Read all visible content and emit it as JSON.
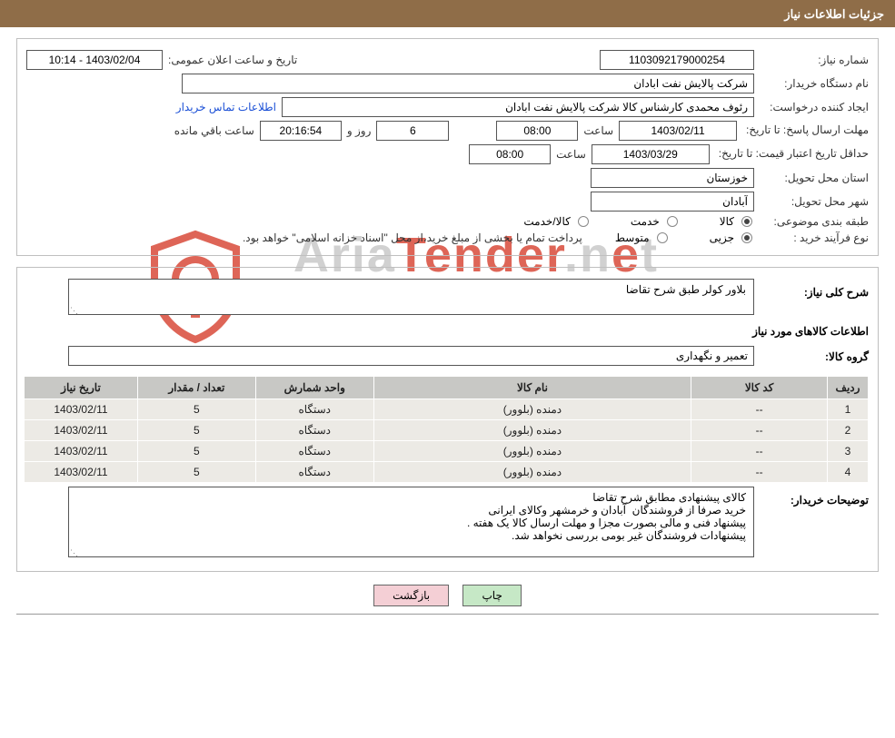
{
  "header": {
    "title": "جزئیات اطلاعات نیاز"
  },
  "panel1": {
    "need_number_label": "شماره نیاز:",
    "need_number": "1103092179000254",
    "announce_label": "تاریخ و ساعت اعلان عمومی:",
    "announce_value": "1403/02/04 - 10:14",
    "buyer_org_label": "نام دستگاه خریدار:",
    "buyer_org": "شرکت پالایش نفت ابادان",
    "requester_label": "ایجاد کننده درخواست:",
    "requester": "رئوف محمدی کارشناس کالا شرکت پالایش نفت ابادان",
    "buyer_contact_link": "اطلاعات تماس خریدار",
    "reply_deadline_label": "مهلت ارسال پاسخ: تا تاریخ:",
    "reply_deadline_date": "1403/02/11",
    "time_word": "ساعت",
    "reply_deadline_time": "08:00",
    "days_value": "6",
    "days_word": "روز و",
    "countdown": "20:16:54",
    "remaining_text": "ساعت باقي مانده",
    "price_validity_label": "حداقل تاریخ اعتبار قیمت: تا تاریخ:",
    "price_validity_date": "1403/03/29",
    "price_validity_time": "08:00",
    "province_label": "استان محل تحویل:",
    "province": "خوزستان",
    "city_label": "شهر محل تحویل:",
    "city": "آبادان",
    "category_label": "طبقه بندی موضوعی:",
    "cat_goods": "کالا",
    "cat_service": "خدمت",
    "cat_goods_service": "کالا/خدمت",
    "purchase_type_label": "نوع فرآیند خرید :",
    "pt_small": "جزیی",
    "pt_medium": "متوسط",
    "purchase_note": "پرداخت تمام یا بخشی از مبلغ خرید،از محل \"اسناد خزانه اسلامی\" خواهد بود."
  },
  "panel2": {
    "need_desc_label": "شرح کلی نیاز:",
    "need_desc": "بلاور کولر طبق شرح تقاضا",
    "goods_title": "اطلاعات کالاهای مورد نیاز",
    "goods_group_label": "گروه کالا:",
    "goods_group": "تعمیر و نگهداری",
    "table": {
      "columns": [
        "ردیف",
        "کد کالا",
        "نام کالا",
        "واحد شمارش",
        "تعداد / مقدار",
        "تاریخ نیاز"
      ],
      "col_widths": [
        "45px",
        "150px",
        "350px",
        "130px",
        "130px",
        "125px"
      ],
      "rows": [
        [
          "1",
          "--",
          "دمنده (بلوور)",
          "دستگاه",
          "5",
          "1403/02/11"
        ],
        [
          "2",
          "--",
          "دمنده (بلوور)",
          "دستگاه",
          "5",
          "1403/02/11"
        ],
        [
          "3",
          "--",
          "دمنده (بلوور)",
          "دستگاه",
          "5",
          "1403/02/11"
        ],
        [
          "4",
          "--",
          "دمنده (بلوور)",
          "دستگاه",
          "5",
          "1403/02/11"
        ]
      ]
    },
    "buyer_notes_label": "توضیحات خریدار:",
    "buyer_notes": "کالای پیشنهادی مطابق شرح تقاضا\nخرید صرفا از فروشندگان  آبادان و خرمشهر وکالای ایرانی\nپیشنهاد فنی و مالی بصورت مجزا و مهلت ارسال کالا یک هفته .\nپیشنهادات فروشندگان غیر بومی بررسی نخواهد شد."
  },
  "buttons": {
    "print": "چاپ",
    "back": "بازگشت"
  },
  "watermark": {
    "t1": "Aria",
    "t2": "Tender",
    "t3": ".n",
    "t4": "e",
    "t5": "t"
  },
  "colors": {
    "header_bg": "#8f6d48",
    "th_bg": "#c8c8c5",
    "td_bg": "#eceae5",
    "btn_green": "#c6e8c6",
    "btn_pink": "#f4cfd5",
    "watermark_gray": "#c9c9c9",
    "watermark_red": "#d94b3a"
  }
}
